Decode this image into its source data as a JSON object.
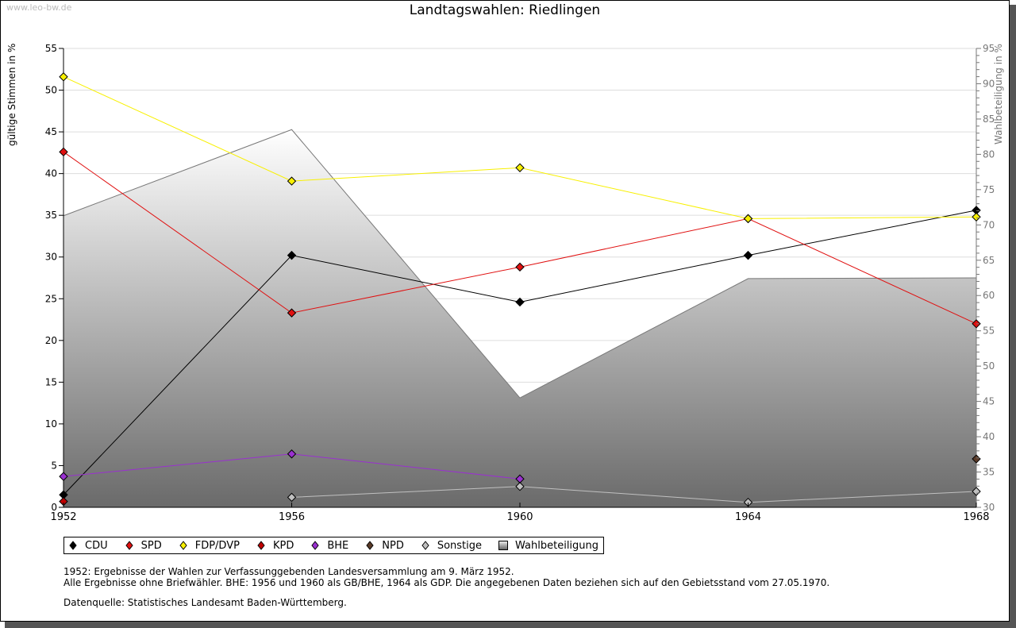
{
  "watermark": "www.leo-bw.de",
  "title": "Landtagswahlen: Riedlingen",
  "legend": [
    {
      "label": "CDU",
      "color": "#000000",
      "shape": "diamond"
    },
    {
      "label": "SPD",
      "color": "#e01010",
      "shape": "diamond"
    },
    {
      "label": "FDP/DVP",
      "color": "#f8f000",
      "shape": "diamond"
    },
    {
      "label": "KPD",
      "color": "#c00000",
      "shape": "diamond"
    },
    {
      "label": "BHE",
      "color": "#9a30d0",
      "shape": "diamond"
    },
    {
      "label": "NPD",
      "color": "#5a3a28",
      "shape": "diamond"
    },
    {
      "label": "Sonstige",
      "color": "#c0c0c0",
      "shape": "diamond"
    },
    {
      "label": "Wahlbeteiligung",
      "color": "#a0a0a0",
      "shape": "square"
    }
  ],
  "notes": {
    "line1": "1952: Ergebnisse der Wahlen zur Verfassunggebenden Landesversammlung am 9. März 1952.",
    "line2": "Alle Ergebnisse ohne Briefwähler. BHE: 1956 und 1960 als GB/BHE, 1964 als GDP. Die angegebenen Daten beziehen sich auf den Gebietsstand vom 27.05.1970.",
    "source": "Datenquelle: Statistisches Landesamt Baden-Württemberg."
  },
  "chart_data": {
    "type": "line",
    "title": "Landtagswahlen: Riedlingen",
    "xlabel": "",
    "ylabel": "gültige Stimmen in %",
    "y2label": "Wahlbeteiligung in %",
    "x": [
      1952,
      1956,
      1960,
      1964,
      1968
    ],
    "x_tick_labels": [
      "1952",
      "1956",
      "1960",
      "1964",
      "1968"
    ],
    "ylim": [
      0,
      55
    ],
    "y_ticks": [
      0,
      5,
      10,
      15,
      20,
      25,
      30,
      35,
      40,
      45,
      50,
      55
    ],
    "y2lim": [
      30,
      95
    ],
    "y2_ticks": [
      30,
      35,
      40,
      45,
      50,
      55,
      60,
      65,
      70,
      75,
      80,
      85,
      90,
      95
    ],
    "grid": true,
    "legend_position": "bottom",
    "series": [
      {
        "name": "CDU",
        "color": "#000000",
        "values": [
          1.5,
          30.2,
          24.6,
          30.2,
          35.6
        ]
      },
      {
        "name": "SPD",
        "color": "#e01010",
        "values": [
          42.6,
          23.3,
          28.8,
          34.6,
          22.0
        ]
      },
      {
        "name": "FDP/DVP",
        "color": "#f8f000",
        "values": [
          51.6,
          39.1,
          40.7,
          34.6,
          34.8
        ]
      },
      {
        "name": "KPD",
        "color": "#c00000",
        "values": [
          0.7,
          null,
          null,
          null,
          null
        ]
      },
      {
        "name": "BHE",
        "color": "#9a30d0",
        "values": [
          3.7,
          6.4,
          3.4,
          null,
          null
        ]
      },
      {
        "name": "NPD",
        "color": "#5a3a28",
        "values": [
          null,
          null,
          null,
          null,
          5.8
        ]
      },
      {
        "name": "Sonstige",
        "color": "#c0c0c0",
        "values": [
          null,
          1.2,
          2.5,
          0.6,
          1.9
        ]
      }
    ],
    "area_series": {
      "name": "Wahlbeteiligung",
      "axis": "right",
      "values": [
        71.3,
        83.5,
        45.5,
        62.4,
        62.5
      ]
    }
  }
}
